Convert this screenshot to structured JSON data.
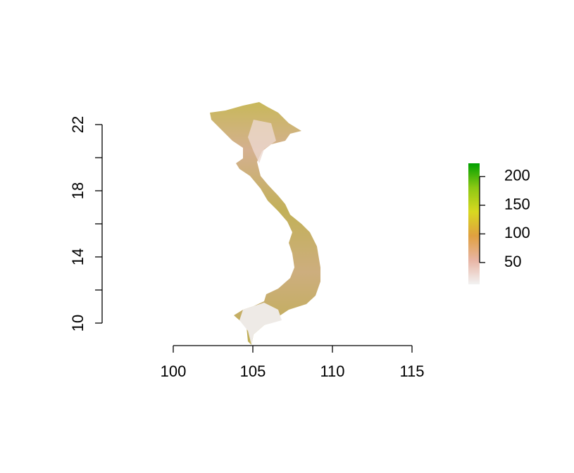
{
  "chart_data": {
    "type": "raster",
    "xlim": [
      100,
      115
    ],
    "xticks": [
      100,
      105,
      110,
      115
    ],
    "ylim": [
      10,
      22
    ],
    "yticks": [
      10,
      14,
      18,
      22
    ],
    "yticks_minor": [
      12,
      16,
      20
    ],
    "colorbar": {
      "zlim": [
        12,
        223
      ],
      "ticks": [
        50,
        100,
        150,
        200
      ],
      "colors": [
        "#f2f2f2",
        "#e8b4a4",
        "#e0a040",
        "#d8d820",
        "#8cc814",
        "#00a000"
      ]
    }
  }
}
